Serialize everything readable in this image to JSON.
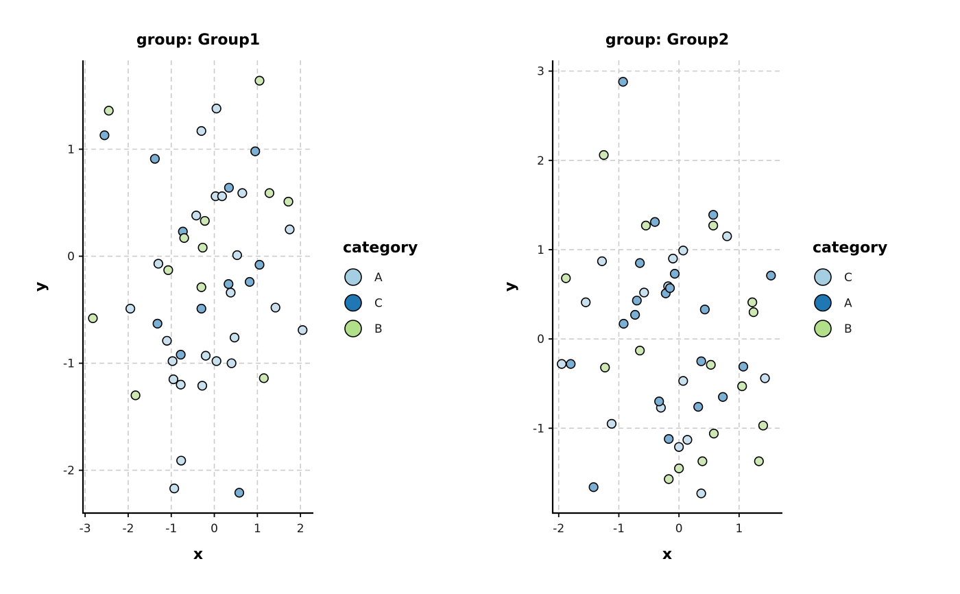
{
  "chart_data": [
    {
      "type": "scatter",
      "title": "group: Group1",
      "xlabel": "x",
      "ylabel": "y",
      "xlim": [
        -3.05,
        2.3
      ],
      "ylim": [
        -2.4,
        1.83
      ],
      "xticks": [
        -3,
        -2,
        -1,
        0,
        1,
        2
      ],
      "yticks": [
        -2,
        -1,
        0,
        1
      ],
      "xtick_labels": [
        "-3",
        "-2",
        "-1",
        "0",
        "1",
        "2"
      ],
      "ytick_labels": [
        "-2",
        "-1",
        "0",
        "1"
      ],
      "grid": true,
      "legend": {
        "title": "category",
        "placement": "right",
        "entries": [
          {
            "label": "A",
            "color": "#A6CEE3"
          },
          {
            "label": "C",
            "color": "#1F78B4"
          },
          {
            "label": "B",
            "color": "#B2DF8A"
          }
        ]
      },
      "series": [
        {
          "name": "A",
          "color": "#C9E0EF",
          "points": [
            [
              0.05,
              1.38
            ],
            [
              -0.3,
              1.17
            ],
            [
              0.03,
              0.56
            ],
            [
              0.18,
              0.56
            ],
            [
              0.65,
              0.59
            ],
            [
              1.75,
              0.25
            ],
            [
              -0.42,
              0.38
            ],
            [
              0.53,
              0.01
            ],
            [
              -1.3,
              -0.07
            ],
            [
              0.38,
              -0.34
            ],
            [
              1.42,
              -0.48
            ],
            [
              -1.95,
              -0.49
            ],
            [
              0.47,
              -0.76
            ],
            [
              -1.1,
              -0.79
            ],
            [
              2.05,
              -0.69
            ],
            [
              -0.2,
              -0.93
            ],
            [
              0.05,
              -0.98
            ],
            [
              0.4,
              -1.0
            ],
            [
              -0.97,
              -0.98
            ],
            [
              -0.95,
              -1.15
            ],
            [
              -0.78,
              -1.2
            ],
            [
              -0.28,
              -1.21
            ],
            [
              -0.77,
              -1.91
            ],
            [
              -0.93,
              -2.17
            ]
          ]
        },
        {
          "name": "C",
          "color": "#7BAFD4",
          "points": [
            [
              -2.55,
              1.13
            ],
            [
              -1.38,
              0.91
            ],
            [
              0.95,
              0.98
            ],
            [
              0.34,
              0.64
            ],
            [
              -0.73,
              0.23
            ],
            [
              0.33,
              -0.26
            ],
            [
              1.05,
              -0.08
            ],
            [
              0.82,
              -0.24
            ],
            [
              -0.3,
              -0.49
            ],
            [
              -1.32,
              -0.63
            ],
            [
              -0.78,
              -0.92
            ],
            [
              0.58,
              -2.21
            ]
          ]
        },
        {
          "name": "B",
          "color": "#CDE8B4",
          "points": [
            [
              1.05,
              1.64
            ],
            [
              -2.45,
              1.36
            ],
            [
              1.28,
              0.59
            ],
            [
              1.72,
              0.51
            ],
            [
              -0.22,
              0.33
            ],
            [
              -0.7,
              0.17
            ],
            [
              -0.27,
              0.08
            ],
            [
              -1.07,
              -0.13
            ],
            [
              -0.3,
              -0.29
            ],
            [
              -2.82,
              -0.58
            ],
            [
              1.15,
              -1.14
            ],
            [
              -1.83,
              -1.3
            ]
          ]
        }
      ]
    },
    {
      "type": "scatter",
      "title": "group: Group2",
      "xlabel": "x",
      "ylabel": "y",
      "xlim": [
        -2.1,
        1.72
      ],
      "ylim": [
        -1.95,
        3.12
      ],
      "xticks": [
        -2,
        -1,
        0,
        1
      ],
      "yticks": [
        -1,
        0,
        1,
        2,
        3
      ],
      "xtick_labels": [
        "-2",
        "-1",
        "0",
        "1"
      ],
      "ytick_labels": [
        "-1",
        "0",
        "1",
        "2",
        "3"
      ],
      "grid": true,
      "legend": {
        "title": "category",
        "placement": "right",
        "entries": [
          {
            "label": "C",
            "color": "#A6CEE3"
          },
          {
            "label": "A",
            "color": "#1F78B4"
          },
          {
            "label": "B",
            "color": "#B2DF8A"
          }
        ]
      },
      "series": [
        {
          "name": "C",
          "color": "#C9E0EF",
          "points": [
            [
              -1.28,
              0.87
            ],
            [
              0.07,
              0.99
            ],
            [
              0.8,
              1.15
            ],
            [
              -0.1,
              0.9
            ],
            [
              -1.55,
              0.41
            ],
            [
              -0.58,
              0.52
            ],
            [
              -0.18,
              0.59
            ],
            [
              -1.95,
              -0.28
            ],
            [
              0.07,
              -0.47
            ],
            [
              1.43,
              -0.44
            ],
            [
              -1.12,
              -0.95
            ],
            [
              -0.3,
              -0.77
            ],
            [
              0.14,
              -1.13
            ],
            [
              0.0,
              -1.21
            ],
            [
              0.37,
              -1.73
            ]
          ]
        },
        {
          "name": "A",
          "color": "#7BAFD4",
          "points": [
            [
              -0.93,
              2.88
            ],
            [
              0.57,
              1.39
            ],
            [
              -0.4,
              1.31
            ],
            [
              1.53,
              0.71
            ],
            [
              -0.65,
              0.85
            ],
            [
              -0.07,
              0.73
            ],
            [
              -0.7,
              0.43
            ],
            [
              -0.22,
              0.51
            ],
            [
              -0.15,
              0.57
            ],
            [
              0.43,
              0.33
            ],
            [
              -0.73,
              0.27
            ],
            [
              -0.92,
              0.17
            ],
            [
              -1.8,
              -0.28
            ],
            [
              0.37,
              -0.25
            ],
            [
              1.07,
              -0.31
            ],
            [
              -0.33,
              -0.7
            ],
            [
              0.73,
              -0.65
            ],
            [
              0.32,
              -0.76
            ],
            [
              -0.17,
              -1.12
            ],
            [
              -1.42,
              -1.66
            ]
          ]
        },
        {
          "name": "B",
          "color": "#CDE8B4",
          "points": [
            [
              -1.25,
              2.06
            ],
            [
              -0.55,
              1.27
            ],
            [
              0.57,
              1.27
            ],
            [
              -1.88,
              0.68
            ],
            [
              1.22,
              0.41
            ],
            [
              1.24,
              0.3
            ],
            [
              -0.65,
              -0.13
            ],
            [
              0.53,
              -0.29
            ],
            [
              -1.23,
              -0.32
            ],
            [
              1.05,
              -0.53
            ],
            [
              1.4,
              -0.97
            ],
            [
              0.58,
              -1.06
            ],
            [
              0.39,
              -1.37
            ],
            [
              1.33,
              -1.37
            ],
            [
              0.0,
              -1.45
            ],
            [
              -0.17,
              -1.57
            ]
          ]
        }
      ]
    }
  ]
}
